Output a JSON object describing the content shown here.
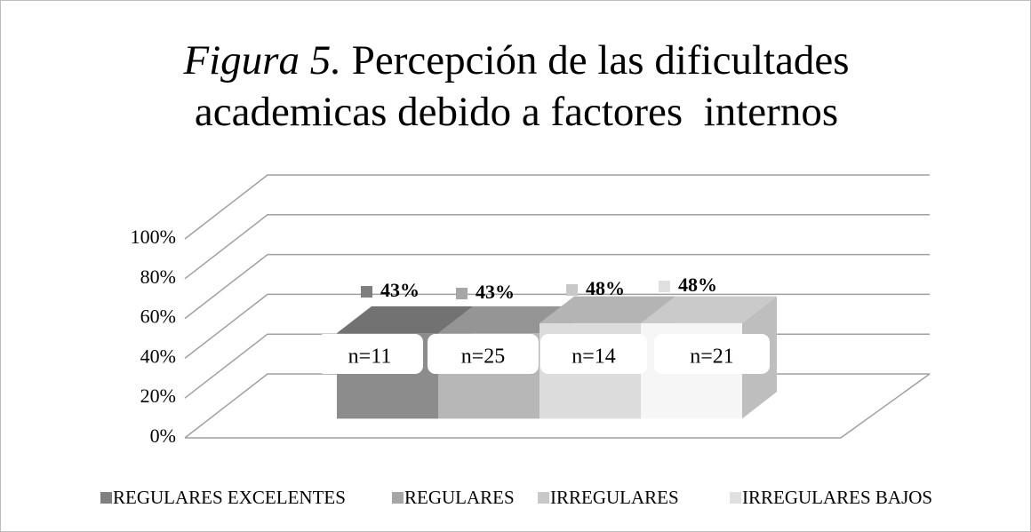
{
  "chart_data": {
    "type": "bar3d",
    "figure_label": "Figura 5.",
    "title": "Percepción de las dificultades academicas debido a factores  internos",
    "categories": [
      null
    ],
    "series": [
      {
        "name": "REGULARES EXCELENTES",
        "color": "#7f7f7f",
        "values": [
          43
        ],
        "value_labels": [
          "43%"
        ]
      },
      {
        "name": "REGULARES",
        "color": "#a6a6a6",
        "values": [
          43
        ],
        "value_labels": [
          "43%"
        ]
      },
      {
        "name": "IRREGULARES",
        "color": "#c8c8c8",
        "values": [
          48
        ],
        "value_labels": [
          "48%"
        ]
      },
      {
        "name": "IRREGULARES BAJOS",
        "color": "#e0e0e0",
        "values": [
          48
        ],
        "value_labels": [
          "48%"
        ]
      }
    ],
    "annotations": [
      "n=11",
      "n=25",
      "n=14",
      "n=21"
    ],
    "ylim": [
      0,
      100
    ],
    "yticks": [
      {
        "value": 0,
        "label": "0%"
      },
      {
        "value": 20,
        "label": "20%"
      },
      {
        "value": 40,
        "label": "40%"
      },
      {
        "value": 60,
        "label": "60%"
      },
      {
        "value": 80,
        "label": "80%"
      },
      {
        "value": 100,
        "label": "100%"
      }
    ],
    "grid": true,
    "legend": "bottom"
  }
}
